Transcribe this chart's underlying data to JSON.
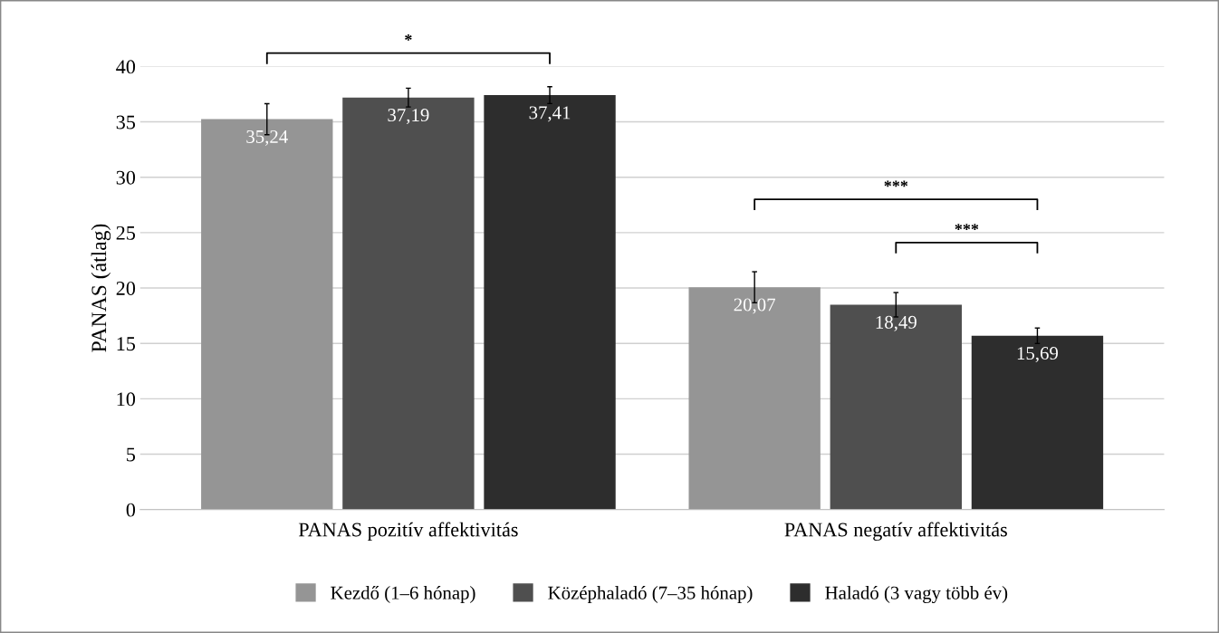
{
  "chart_data": {
    "type": "bar",
    "ylabel": "PANAS (átlag)",
    "categories": [
      "PANAS pozitív affektivitás",
      "PANAS negatív affektivitás"
    ],
    "series": [
      {
        "name": "Kezdő (1–6 hónap)",
        "color": "#959595",
        "values": [
          35.24,
          20.07
        ],
        "errors": [
          1.4,
          1.4
        ]
      },
      {
        "name": "Középhaladó (7–35 hónap)",
        "color": "#4f4f4f",
        "values": [
          37.19,
          18.49
        ],
        "errors": [
          0.85,
          1.1
        ]
      },
      {
        "name": "Haladó (3 vagy több év)",
        "color": "#2d2d2d",
        "values": [
          37.41,
          15.69
        ],
        "errors": [
          0.76,
          0.7
        ]
      }
    ],
    "value_labels": [
      [
        "35,24",
        "20,07"
      ],
      [
        "37,19",
        "18,49"
      ],
      [
        "37,41",
        "15,69"
      ]
    ],
    "ylim": [
      0,
      40
    ],
    "yticks": [
      0,
      5,
      10,
      15,
      20,
      25,
      30,
      35,
      40
    ],
    "grid": "y",
    "legend": "bottom",
    "annotations": [
      "*",
      "***",
      "***"
    ]
  }
}
